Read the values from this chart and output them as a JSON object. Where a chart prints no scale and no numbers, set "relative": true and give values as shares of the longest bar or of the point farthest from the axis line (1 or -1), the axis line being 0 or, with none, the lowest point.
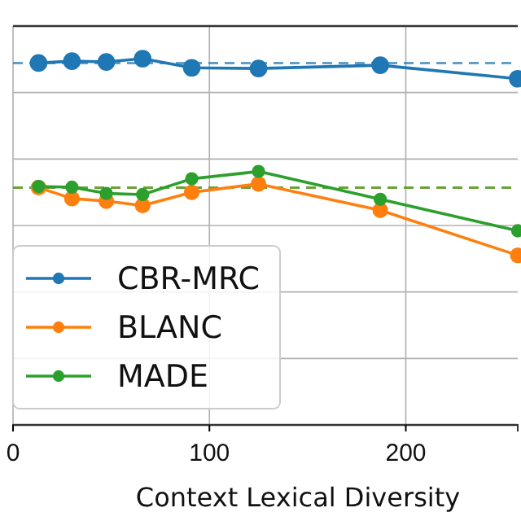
{
  "chart_data": {
    "type": "line",
    "relative": true,
    "xlabel": "Context Lexical Diversity",
    "x": [
      13,
      30,
      47.5,
      66,
      91,
      125,
      187,
      257
    ],
    "xlim": [
      0,
      257
    ],
    "xticks": [
      0,
      100,
      200
    ],
    "series": [
      {
        "name": "CBR-MRC",
        "color": "#1f77b4",
        "values": [
          0.988,
          0.993,
          0.991,
          1.0,
          0.975,
          0.973,
          0.982,
          0.945
        ]
      },
      {
        "name": "BLANC",
        "color": "#ff7f0e",
        "values": [
          0.648,
          0.618,
          0.611,
          0.599,
          0.635,
          0.658,
          0.586,
          0.463
        ]
      },
      {
        "name": "MADE",
        "color": "#2ca02c",
        "values": [
          0.651,
          0.649,
          0.632,
          0.629,
          0.672,
          0.692,
          0.616,
          0.53
        ]
      }
    ],
    "ref_lines": [
      {
        "axis": "y",
        "value": 0.988,
        "color": "#1f77b4",
        "line_style": "dashed"
      },
      {
        "axis": "y",
        "value": 0.648,
        "color": "#ff7f0e",
        "line_style": "dashed"
      },
      {
        "axis": "y",
        "value": 0.648,
        "color": "#2ca02c",
        "line_style": "dashed"
      }
    ],
    "grid": true,
    "legend": "bottom left",
    "marker": "circle",
    "line_style": "solid"
  }
}
